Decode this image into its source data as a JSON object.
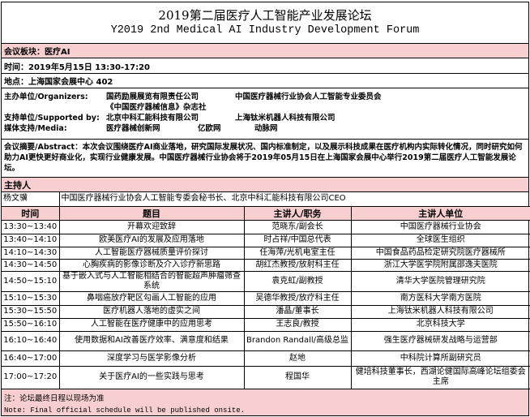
{
  "title": {
    "cn": "2019第二届医疗人工智能产业发展论坛",
    "en": "Y2019 2nd Medical AI Industry Development Forum"
  },
  "session": "会议板块：医疗AI",
  "time": "时间：2019年5月15日 13:30-17:20",
  "venue": "地点：上海国家会展中心 402",
  "organizers": {
    "label": "主办单位/Organizers:",
    "items": [
      "国药励展展览有限责任公司",
      "中国医疗器械行业协会人工智能专业委员会",
      "《中国医疗器械信息》杂志社"
    ]
  },
  "supporters": {
    "label": "支持单位/Supported by:",
    "items": [
      "北京中科汇能科技有限公司",
      "上海钛米机器人科技有限公司"
    ]
  },
  "media": {
    "label": "媒体支持/Media:",
    "items": [
      "医疗器械创新网",
      "亿欧网",
      "动脉网"
    ]
  },
  "abstract": "会议摘要/Abstract：本次会议围绕医疗AI商业落地，研究国际发展状况、国内标准制定，以及展示科技成果在医疗机构内实际转化情况，同时研究如何助力AI更快更好商业化，实现行业健康发展。中国医疗器械行业协会将于2019年05月15日在上海国家会展中心举行2019第二届医疗人工智能发展论坛。",
  "host": {
    "heading": "主持人",
    "name": "杨文骥",
    "title": "中国医疗器械行业协会人工智能专委会秘书长、北京中科汇能科技有限公司CEO"
  },
  "schedule": {
    "headers": [
      "时间",
      "题目",
      "主讲人/职务",
      "主讲人单位"
    ],
    "rows": [
      [
        "13:30~13:40",
        "开幕欢迎致辞",
        "范晓东/副会长",
        "中国医疗器械行业协会"
      ],
      [
        "13:40~14:10",
        "欧美医疗AI的发展及应用落地",
        "时占祥/中国总代表",
        "全球医生组织"
      ],
      [
        "14:10~14:30",
        "人工智能医疗器械质量评价探讨",
        "任海萍/光机电室主任",
        "中国食品药品检定研究院医疗器械所"
      ],
      [
        "14:30~14:50",
        "心胸疾病的影像诊断及介入诊疗新思路",
        "胡红杰教授/放射科主任",
        "浙江大学医学院附属邵逸夫医院"
      ],
      [
        "14:50~15:10",
        "基于嵌入式与人工智能相结合的智能超声肿瘤筛查系统",
        "袁克虹/副教授",
        "清华大学医院管理研究院"
      ],
      [
        "15:10~15:30",
        "鼻咽癌放疗靶区勾画人工智能的应用",
        "吴德华教授/放疗科主任",
        "南方医科大学南方医院"
      ],
      [
        "15:30~15:50",
        "医疗机器人落地的虚实之间",
        "潘晶/董事长",
        "上海钛米机器人科技有限公司"
      ],
      [
        "15:50~16:10",
        "人工智能在医疗健康中的应用思考",
        "王志良/教授",
        "北京科技大学"
      ],
      [
        "16:10~16:40",
        "使用数据和AI改善医疗效率、满意度和结果",
        "Brandon Randall/高级总监",
        "强生医疗器械研发战略与运营部"
      ],
      [
        "16:40~17:00",
        "深度学习与医学影像分析",
        "赵地",
        "中科院计算所副研究员"
      ],
      [
        "17:00~17:20",
        "关于医疗AI的一些实践与思考",
        "程国华",
        "健培科技董事长，西湖论健国际高峰论坛组委会主席"
      ]
    ]
  },
  "note": {
    "cn": "注：论坛最终日程以现场为准",
    "en": "Note: Final official schedule will be published onsite."
  },
  "colors": {
    "highlight": "#f8cfd0",
    "border": "#000000"
  }
}
